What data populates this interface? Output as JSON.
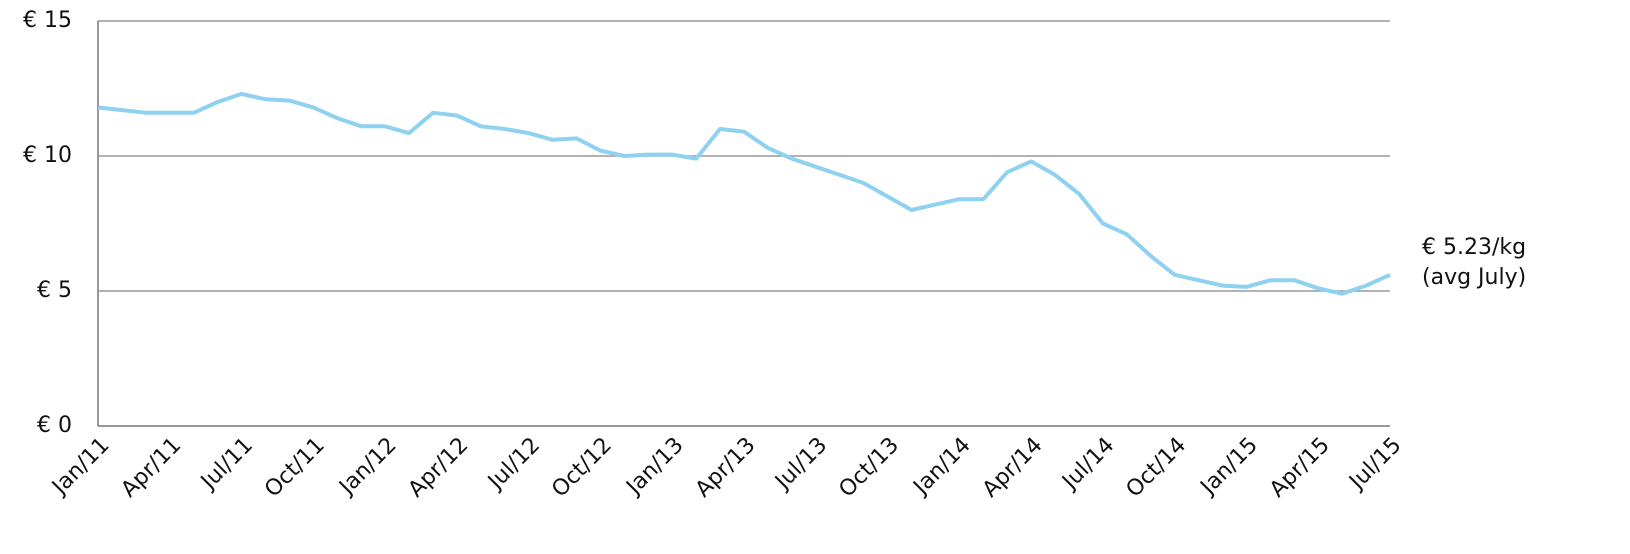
{
  "chart_data": {
    "type": "line",
    "x": [
      "2011-01",
      "2011-02",
      "2011-03",
      "2011-04",
      "2011-05",
      "2011-06",
      "2011-07",
      "2011-08",
      "2011-09",
      "2011-10",
      "2011-11",
      "2011-12",
      "2012-01",
      "2012-02",
      "2012-03",
      "2012-04",
      "2012-05",
      "2012-06",
      "2012-07",
      "2012-08",
      "2012-09",
      "2012-10",
      "2012-11",
      "2012-12",
      "2013-01",
      "2013-02",
      "2013-03",
      "2013-04",
      "2013-05",
      "2013-06",
      "2013-07",
      "2013-08",
      "2013-09",
      "2013-10",
      "2013-11",
      "2013-12",
      "2014-01",
      "2014-02",
      "2014-03",
      "2014-04",
      "2014-05",
      "2014-06",
      "2014-07",
      "2014-08",
      "2014-09",
      "2014-10",
      "2014-11",
      "2014-12",
      "2015-01",
      "2015-02",
      "2015-03",
      "2015-04",
      "2015-05",
      "2015-06",
      "2015-07"
    ],
    "series": [
      {
        "color": "#8ed1f0",
        "values": [
          11.8,
          11.7,
          11.6,
          11.6,
          11.6,
          12.0,
          12.3,
          12.1,
          12.05,
          11.8,
          11.4,
          11.1,
          11.1,
          10.85,
          11.6,
          11.5,
          11.1,
          11.0,
          10.85,
          10.6,
          10.65,
          10.2,
          10.0,
          10.05,
          10.05,
          9.9,
          11.0,
          10.9,
          10.3,
          9.9,
          9.6,
          9.3,
          9.0,
          8.5,
          8.0,
          8.2,
          8.4,
          8.4,
          9.4,
          9.8,
          9.3,
          8.6,
          7.5,
          7.1,
          6.3,
          5.6,
          5.4,
          5.2,
          5.15,
          5.4,
          5.4,
          5.1,
          4.9,
          5.2,
          5.6
        ]
      }
    ],
    "xlim": [
      "2011-01",
      "2015-07"
    ],
    "xticks": [
      {
        "value": "2011-01",
        "label": "Jan/11"
      },
      {
        "value": "2011-04",
        "label": "Apr/11"
      },
      {
        "value": "2011-07",
        "label": "Jul/11"
      },
      {
        "value": "2011-10",
        "label": "Oct/11"
      },
      {
        "value": "2012-01",
        "label": "Jan/12"
      },
      {
        "value": "2012-04",
        "label": "Apr/12"
      },
      {
        "value": "2012-07",
        "label": "Jul/12"
      },
      {
        "value": "2012-10",
        "label": "Oct/12"
      },
      {
        "value": "2013-01",
        "label": "Jan/13"
      },
      {
        "value": "2013-04",
        "label": "Apr/13"
      },
      {
        "value": "2013-07",
        "label": "Jul/13"
      },
      {
        "value": "2013-10",
        "label": "Oct/13"
      },
      {
        "value": "2014-01",
        "label": "Jan/14"
      },
      {
        "value": "2014-04",
        "label": "Apr/14"
      },
      {
        "value": "2014-07",
        "label": "Jul/14"
      },
      {
        "value": "2014-10",
        "label": "Oct/14"
      },
      {
        "value": "2015-01",
        "label": "Jan/15"
      },
      {
        "value": "2015-04",
        "label": "Apr/15"
      },
      {
        "value": "2015-07",
        "label": "Jul/15"
      }
    ],
    "ylim": [
      0,
      15
    ],
    "yticks": [
      {
        "value": 0,
        "label": "€ 0"
      },
      {
        "value": 5,
        "label": "€ 5"
      },
      {
        "value": 10,
        "label": "€ 10"
      },
      {
        "value": 15,
        "label": "€ 15"
      }
    ],
    "grid": true,
    "annotations": [
      "€ 5.23/kg",
      "(avg July)"
    ]
  }
}
